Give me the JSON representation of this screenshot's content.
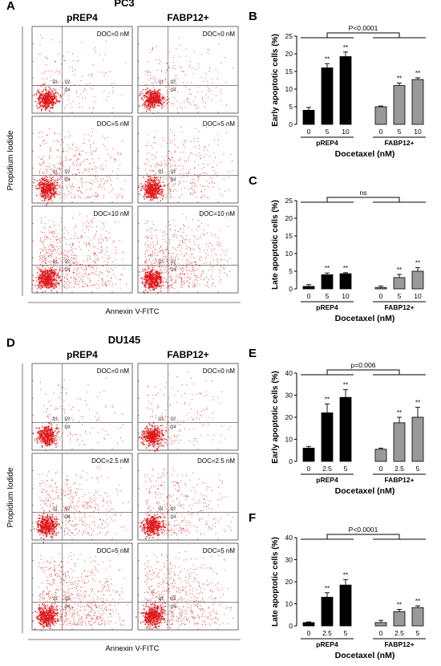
{
  "panels": {
    "A": {
      "letter": "A",
      "cell_line": "PC3",
      "col_titles": [
        "pREP4",
        "FABP12+"
      ],
      "row_labels": [
        "DOC=0 nM",
        "DOC=5 nM",
        "DOC=10 nM"
      ],
      "quadrants": [
        "Q1",
        "Q2",
        "Q4"
      ],
      "x_axis": "Annexin V-FITC",
      "y_axis": "Propidium Iodide"
    },
    "D": {
      "letter": "D",
      "cell_line": "DU145",
      "col_titles": [
        "pREP4",
        "FABP12+"
      ],
      "row_labels": [
        "DOC=0 nM",
        "DOC=2.5 nM",
        "DOC=5 nM"
      ],
      "quadrants": [
        "Q1",
        "Q2",
        "Q4"
      ],
      "x_axis": "Annexin V-FITC",
      "y_axis": "Propidium Iodide"
    }
  },
  "chart_data": [
    {
      "panel": "B",
      "type": "bar",
      "ylabel": "Early apoptotic cells (%)",
      "xlabel": "Docetaxel (nM)",
      "ylim": [
        0,
        25
      ],
      "yticks": [
        0,
        5,
        10,
        15,
        20,
        25
      ],
      "groups": [
        {
          "name": "pREP4",
          "categories": [
            "0",
            "5",
            "10"
          ],
          "values": [
            4.0,
            16.0,
            19.2
          ],
          "errors": [
            0.8,
            1.2,
            1.3
          ],
          "sig": [
            "",
            "**",
            "**"
          ],
          "color": "#000000"
        },
        {
          "name": "FABP12+",
          "categories": [
            "0",
            "5",
            "10"
          ],
          "values": [
            5.0,
            11.0,
            12.7
          ],
          "errors": [
            0.2,
            0.7,
            0.5
          ],
          "sig": [
            "",
            "**",
            "**"
          ],
          "color": "#999999"
        }
      ],
      "comparison": "P<0.0001"
    },
    {
      "panel": "C",
      "type": "bar",
      "ylabel": "Late apoptotic cells (%)",
      "xlabel": "Docetaxel (nM)",
      "ylim": [
        0,
        25
      ],
      "yticks": [
        0,
        5,
        10,
        15,
        20,
        25
      ],
      "groups": [
        {
          "name": "pREP4",
          "categories": [
            "0",
            "5",
            "10"
          ],
          "values": [
            0.7,
            4.0,
            4.3
          ],
          "errors": [
            0.5,
            0.5,
            0.3
          ],
          "sig": [
            "",
            "**",
            "**"
          ],
          "color": "#000000"
        },
        {
          "name": "FABP12+",
          "categories": [
            "0",
            "5",
            "10"
          ],
          "values": [
            0.4,
            3.2,
            5.0
          ],
          "errors": [
            0.4,
            0.9,
            1.0
          ],
          "sig": [
            "",
            "**",
            "**"
          ],
          "color": "#999999"
        }
      ],
      "comparison": "ns"
    },
    {
      "panel": "E",
      "type": "bar",
      "ylabel": "Early apoptotic cells (%)",
      "xlabel": "Docetaxel (nM)",
      "ylim": [
        0,
        40
      ],
      "yticks": [
        0,
        10,
        20,
        30,
        40
      ],
      "groups": [
        {
          "name": "pREP4",
          "categories": [
            "0",
            "2.5",
            "5"
          ],
          "values": [
            6.0,
            22.0,
            29.0
          ],
          "errors": [
            0.8,
            4.0,
            3.5
          ],
          "sig": [
            "",
            "**",
            "**"
          ],
          "color": "#000000"
        },
        {
          "name": "FABP12+",
          "categories": [
            "0",
            "2.5",
            "5"
          ],
          "values": [
            5.5,
            17.5,
            20.0
          ],
          "errors": [
            0.5,
            2.5,
            4.5
          ],
          "sig": [
            "",
            "**",
            "**"
          ],
          "color": "#999999"
        }
      ],
      "comparison": "p=0.006"
    },
    {
      "panel": "F",
      "type": "bar",
      "ylabel": "Late apoptotic cells (%)",
      "xlabel": "Docetaxel (nM)",
      "ylim": [
        0,
        40
      ],
      "yticks": [
        0,
        10,
        20,
        30,
        40
      ],
      "groups": [
        {
          "name": "pREP4",
          "categories": [
            "0",
            "2.5",
            "5"
          ],
          "values": [
            1.5,
            13.0,
            18.5
          ],
          "errors": [
            0.3,
            2.0,
            2.5
          ],
          "sig": [
            "",
            "**",
            "**"
          ],
          "color": "#000000"
        },
        {
          "name": "FABP12+",
          "categories": [
            "0",
            "2.5",
            "5"
          ],
          "values": [
            1.5,
            6.5,
            8.3
          ],
          "errors": [
            1.0,
            1.0,
            0.8
          ],
          "sig": [
            "",
            "**",
            "**"
          ],
          "color": "#999999"
        }
      ],
      "comparison": "P<0.0001"
    }
  ]
}
